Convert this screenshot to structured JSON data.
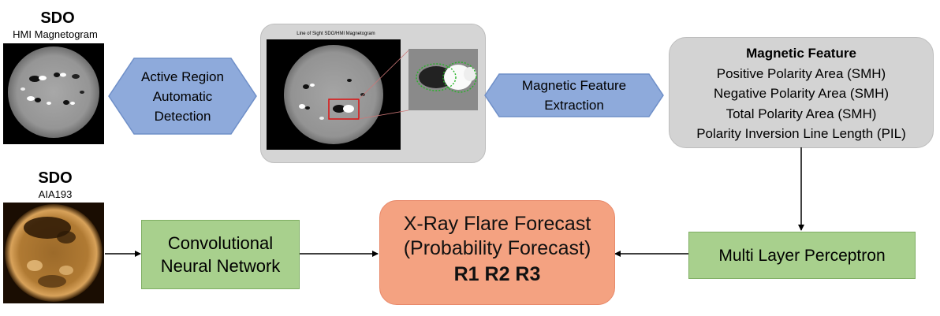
{
  "sdo_hmi": {
    "title": "SDO",
    "subtitle": "HMI Magnetogram"
  },
  "sdo_aia": {
    "title": "SDO",
    "subtitle": "AIA193"
  },
  "magnetogram_panel": {
    "image_title": "Line of Sight SDO/HMI Magnetogram"
  },
  "steps": {
    "active_region": [
      "Active Region",
      "Automatic",
      "Detection"
    ],
    "feature_extraction": [
      "Magnetic Feature",
      "Extraction"
    ]
  },
  "magnetic_feature": {
    "title": "Magnetic Feature",
    "items": [
      "Positive Polarity Area (SMH)",
      "Negative Polarity Area (SMH)",
      "Total Polarity Area (SMH)",
      "Polarity Inversion Line Length (PIL)"
    ]
  },
  "cnn": [
    "Convolutional",
    "Neural Network"
  ],
  "mlp": "Multi Layer Perceptron",
  "forecast": {
    "line1": "X-Ray Flare Forecast",
    "line2": "(Probability Forecast)",
    "outputs": "R1 R2 R3"
  },
  "colors": {
    "arrow_fill": "#8eaadb",
    "arrow_border": "#6f8fc8",
    "green_fill": "#a8d08d",
    "orange_fill": "#f4a281",
    "gray_fill": "#d3d3d3"
  }
}
